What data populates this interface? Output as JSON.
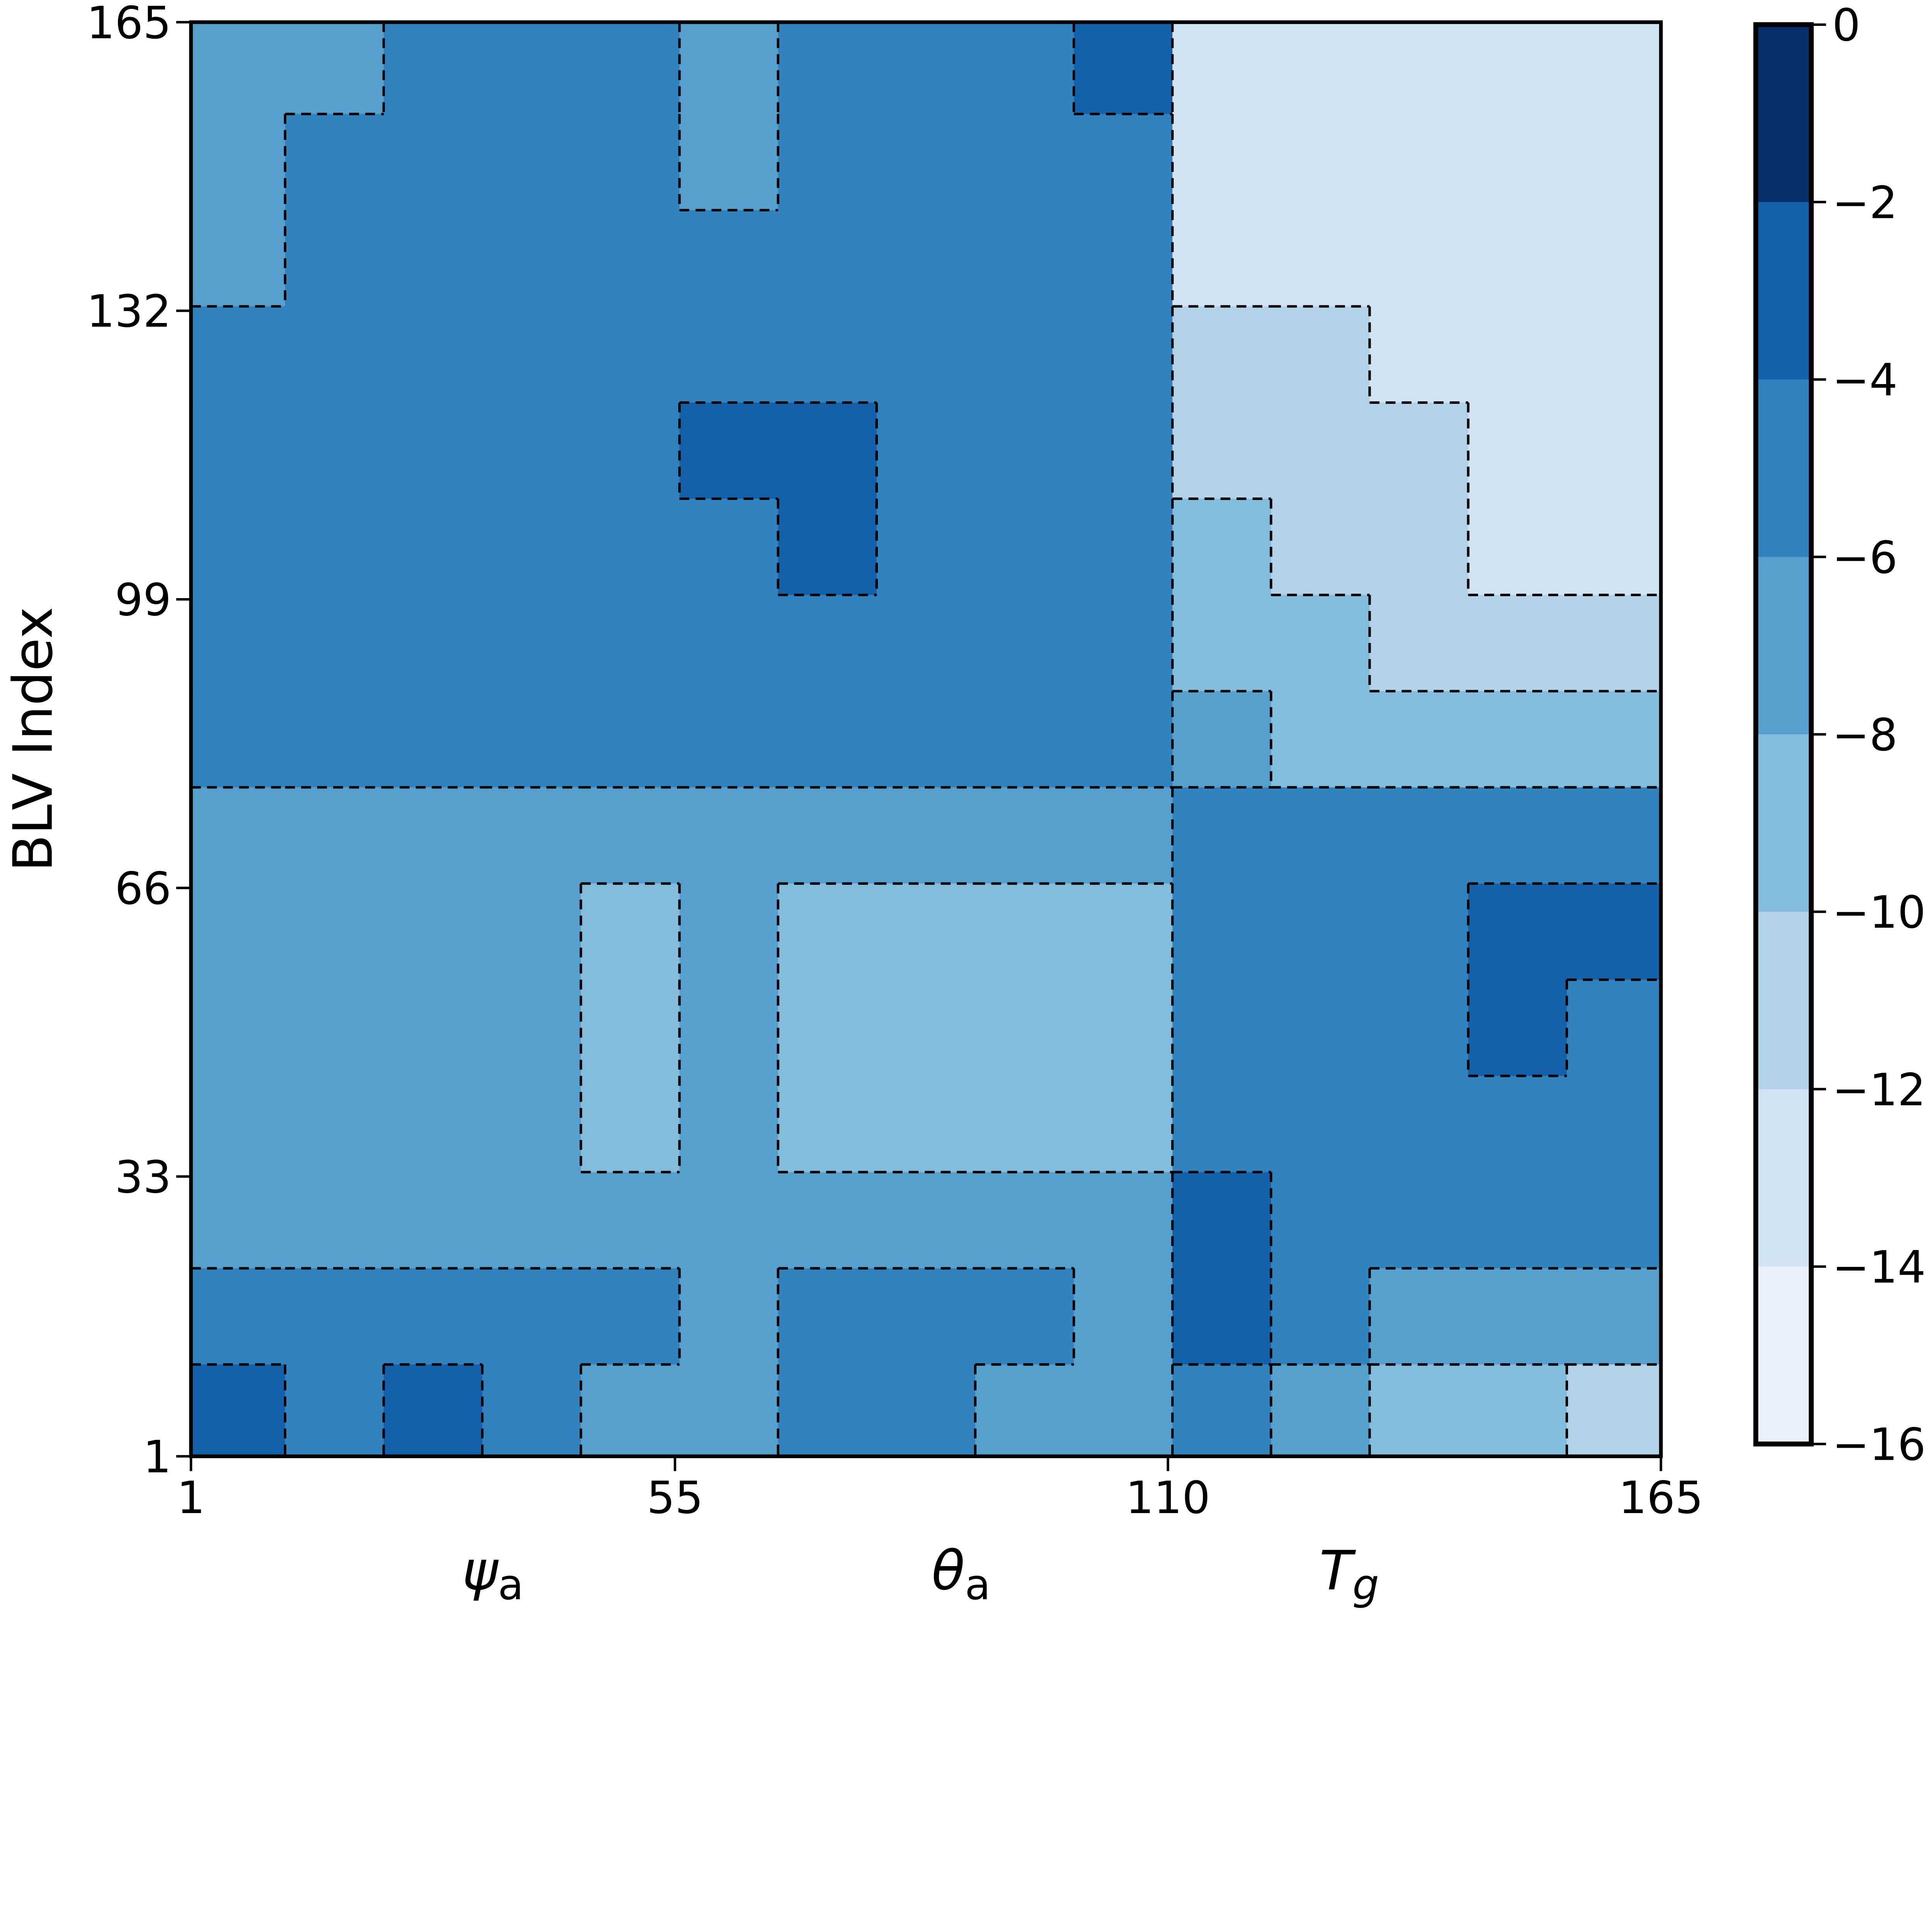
{
  "chart_data": {
    "type": "heatmap",
    "style": "filled-contour with dashed contour lines",
    "title": "",
    "ylabel": "BLV Index",
    "xlabel_groups": [
      {
        "symbol": "ψ",
        "sub": "a"
      },
      {
        "symbol": "θ",
        "sub": "a"
      },
      {
        "symbol": "T",
        "sub": "g"
      }
    ],
    "xlim": [
      1,
      165
    ],
    "ylim": [
      1,
      165
    ],
    "x_ticks": [
      "1",
      "55",
      "110",
      "165"
    ],
    "y_ticks": [
      "1",
      "33",
      "66",
      "99",
      "132",
      "165"
    ],
    "colorbar": {
      "levels": [
        0,
        -2,
        -4,
        -6,
        -8,
        -10,
        -12,
        -14,
        -16
      ],
      "tick_labels": [
        "0",
        "−2",
        "−4",
        "−6",
        "−8",
        "−10",
        "−12",
        "−14",
        "−16"
      ],
      "colors": [
        "#08306b",
        "#1561a9",
        "#3182bd",
        "#57a0ce",
        "#84bcdb",
        "#b1d2e7",
        "#d2e3f3",
        "#e8f1fa"
      ],
      "colormap": "Blues"
    },
    "grid_x_centers": [
      6,
      17,
      28,
      39,
      50,
      61,
      72,
      83,
      94,
      105,
      116,
      127,
      138,
      149,
      160
    ],
    "grid_y_centers": [
      160,
      149,
      138,
      127,
      116,
      105,
      94,
      83,
      72,
      61,
      50,
      39,
      28,
      17,
      6
    ],
    "values": [
      [
        -7,
        -7,
        -5,
        -5,
        -5,
        -7,
        -5,
        -5,
        -5,
        -3,
        -13,
        -13,
        -13,
        -13,
        -13
      ],
      [
        -7,
        -5,
        -5,
        -5,
        -5,
        -7,
        -5,
        -5,
        -5,
        -5,
        -13,
        -13,
        -13,
        -13,
        -13
      ],
      [
        -7,
        -5,
        -5,
        -5,
        -5,
        -5,
        -5,
        -5,
        -5,
        -5,
        -13,
        -13,
        -13,
        -13,
        -13
      ],
      [
        -5,
        -5,
        -5,
        -5,
        -5,
        -5,
        -5,
        -5,
        -5,
        -5,
        -11,
        -11,
        -13,
        -13,
        -13
      ],
      [
        -5,
        -5,
        -5,
        -5,
        -5,
        -3,
        -3,
        -5,
        -5,
        -5,
        -11,
        -11,
        -11,
        -13,
        -13
      ],
      [
        -5,
        -5,
        -5,
        -5,
        -5,
        -5,
        -3,
        -5,
        -5,
        -5,
        -9,
        -11,
        -11,
        -13,
        -13
      ],
      [
        -5,
        -5,
        -5,
        -5,
        -5,
        -5,
        -5,
        -5,
        -5,
        -5,
        -9,
        -9,
        -11,
        -11,
        -11
      ],
      [
        -5,
        -5,
        -5,
        -5,
        -5,
        -5,
        -5,
        -5,
        -5,
        -5,
        -7,
        -9,
        -9,
        -9,
        -9
      ],
      [
        -7,
        -7,
        -7,
        -7,
        -7,
        -7,
        -7,
        -7,
        -7,
        -7,
        -5,
        -5,
        -5,
        -5,
        -5
      ],
      [
        -7,
        -7,
        -7,
        -7,
        -9,
        -7,
        -9,
        -9,
        -9,
        -9,
        -5,
        -5,
        -5,
        -3,
        -3
      ],
      [
        -7,
        -7,
        -7,
        -7,
        -9,
        -7,
        -9,
        -9,
        -9,
        -9,
        -5,
        -5,
        -5,
        -3,
        -5
      ],
      [
        -7,
        -7,
        -7,
        -7,
        -9,
        -7,
        -9,
        -9,
        -9,
        -9,
        -5,
        -5,
        -5,
        -5,
        -5
      ],
      [
        -7,
        -7,
        -7,
        -7,
        -7,
        -7,
        -7,
        -7,
        -7,
        -7,
        -3,
        -5,
        -5,
        -5,
        -5
      ],
      [
        -5,
        -5,
        -5,
        -5,
        -5,
        -7,
        -5,
        -5,
        -5,
        -7,
        -3,
        -5,
        -7,
        -7,
        -7
      ],
      [
        -3,
        -5,
        -3,
        -5,
        -7,
        -7,
        -5,
        -5,
        -7,
        -7,
        -5,
        -7,
        -9,
        -9,
        -11
      ]
    ]
  }
}
